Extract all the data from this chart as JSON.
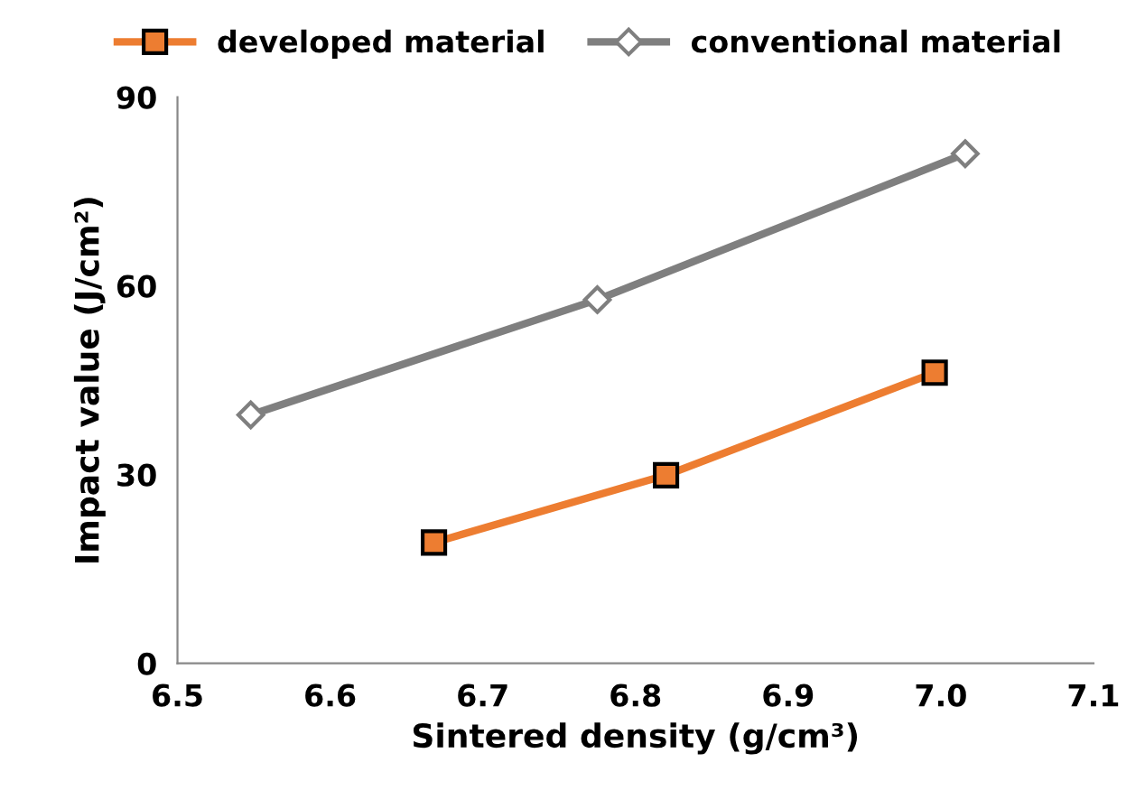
{
  "chart_data": {
    "type": "line",
    "xlabel": "Sintered density (g/cm³)",
    "ylabel": "Impact value (J/cm²)",
    "xlim": [
      6.5,
      7.1
    ],
    "xticks": [
      {
        "value": 6.5,
        "label": "6.5"
      },
      {
        "value": 6.6,
        "label": "6.6"
      },
      {
        "value": 6.7,
        "label": "6.7"
      },
      {
        "value": 6.8,
        "label": "6.8"
      },
      {
        "value": 6.9,
        "label": "6.9"
      },
      {
        "value": 7.0,
        "label": "7.0"
      },
      {
        "value": 7.1,
        "label": "7.1"
      }
    ],
    "ylim": [
      0,
      90
    ],
    "yticks": [
      0,
      30,
      60,
      90
    ],
    "grid": false,
    "legend": "top",
    "series": [
      {
        "name": "developed material",
        "color": "#ed7d31",
        "marker": "square",
        "x": [
          6.668,
          6.82,
          6.996
        ],
        "values": [
          19.2,
          29.9,
          46.2
        ]
      },
      {
        "name": "conventional material",
        "color": "#7f7f7f",
        "marker": "diamond",
        "x": [
          6.548,
          6.775,
          7.016
        ],
        "values": [
          39.5,
          57.8,
          81.0
        ]
      }
    ]
  }
}
